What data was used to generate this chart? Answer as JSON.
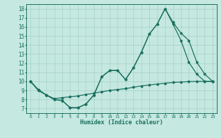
{
  "xlabel": "Humidex (Indice chaleur)",
  "background_color": "#c5e8e0",
  "grid_color": "#aad4ca",
  "line_color": "#1a7060",
  "xlim": [
    -0.5,
    23.5
  ],
  "ylim": [
    6.5,
    18.5
  ],
  "xticks": [
    0,
    1,
    2,
    3,
    4,
    5,
    6,
    7,
    8,
    9,
    10,
    11,
    12,
    13,
    14,
    15,
    16,
    17,
    18,
    19,
    20,
    21,
    22,
    23
  ],
  "yticks": [
    7,
    8,
    9,
    10,
    11,
    12,
    13,
    14,
    15,
    16,
    17,
    18
  ],
  "line1_x": [
    0,
    1,
    2,
    3,
    4,
    5,
    6,
    7,
    8,
    9,
    10,
    11,
    12,
    13,
    14,
    15,
    16,
    17,
    18,
    19,
    20,
    21,
    22,
    23
  ],
  "line1_y": [
    10.0,
    9.0,
    8.5,
    8.0,
    7.9,
    7.1,
    7.1,
    7.5,
    8.5,
    10.5,
    11.2,
    11.2,
    10.2,
    11.5,
    13.2,
    15.2,
    16.3,
    18.0,
    16.3,
    14.5,
    12.1,
    10.8,
    10.0,
    10.0
  ],
  "line2_x": [
    0,
    1,
    2,
    3,
    4,
    5,
    6,
    7,
    8,
    9,
    10,
    11,
    12,
    13,
    14,
    15,
    16,
    17,
    18,
    19,
    20,
    21,
    22,
    23
  ],
  "line2_y": [
    10.0,
    9.0,
    8.5,
    8.0,
    7.9,
    7.1,
    7.1,
    7.5,
    8.5,
    10.5,
    11.2,
    11.2,
    10.2,
    11.5,
    13.2,
    15.2,
    16.3,
    18.0,
    16.5,
    15.3,
    14.5,
    12.1,
    10.8,
    10.0
  ],
  "line3_x": [
    0,
    1,
    2,
    3,
    4,
    5,
    6,
    7,
    8,
    9,
    10,
    11,
    12,
    13,
    14,
    15,
    16,
    17,
    18,
    19,
    20,
    21,
    22,
    23
  ],
  "line3_y": [
    10.0,
    9.1,
    8.5,
    8.1,
    8.2,
    8.3,
    8.4,
    8.55,
    8.7,
    8.85,
    9.0,
    9.1,
    9.2,
    9.35,
    9.5,
    9.6,
    9.7,
    9.8,
    9.88,
    9.93,
    9.97,
    10.0,
    10.0,
    10.0
  ]
}
